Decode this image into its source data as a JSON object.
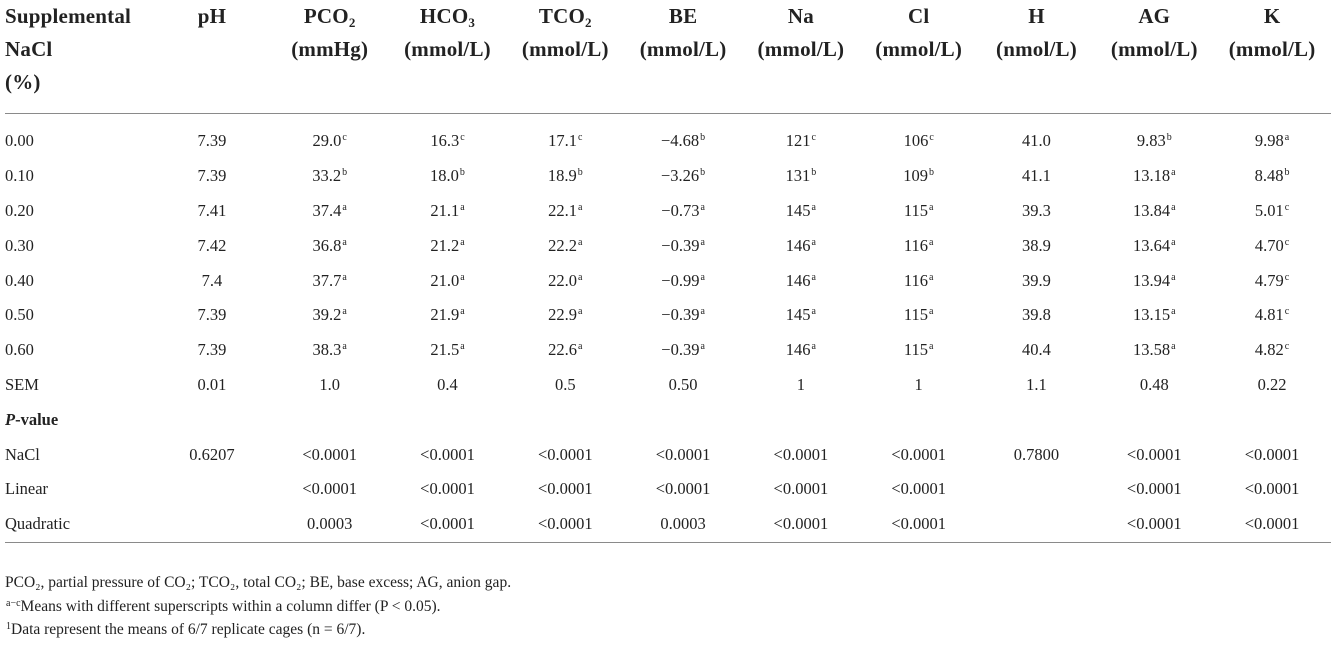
{
  "header": {
    "stub": [
      "Supplemental",
      "NaCl",
      "(%)"
    ],
    "columns": [
      {
        "name": "pH",
        "unit": ""
      },
      {
        "name": "PCO",
        "sub": "2",
        "unit": "(mmHg)"
      },
      {
        "name": "HCO",
        "sub": "3",
        "unit": "(mmol/L)"
      },
      {
        "name": "TCO",
        "sub": "2",
        "unit": "(mmol/L)"
      },
      {
        "name": "BE",
        "unit": "(mmol/L)"
      },
      {
        "name": "Na",
        "unit": "(mmol/L)"
      },
      {
        "name": "Cl",
        "unit": "(mmol/L)"
      },
      {
        "name": "H",
        "unit": "(nmol/L)"
      },
      {
        "name": "AG",
        "unit": "(mmol/L)"
      },
      {
        "name": "K",
        "unit": "(mmol/L)"
      }
    ]
  },
  "rows": [
    {
      "label": "0.00",
      "cells": [
        [
          "7.39",
          ""
        ],
        [
          "29.0",
          "c"
        ],
        [
          "16.3",
          "c"
        ],
        [
          "17.1",
          "c"
        ],
        [
          "−4.68",
          "b"
        ],
        [
          "121",
          "c"
        ],
        [
          "106",
          "c"
        ],
        [
          "41.0",
          ""
        ],
        [
          "9.83",
          "b"
        ],
        [
          "9.98",
          "a"
        ]
      ]
    },
    {
      "label": "0.10",
      "cells": [
        [
          "7.39",
          ""
        ],
        [
          "33.2",
          "b"
        ],
        [
          "18.0",
          "b"
        ],
        [
          "18.9",
          "b"
        ],
        [
          "−3.26",
          "b"
        ],
        [
          "131",
          "b"
        ],
        [
          "109",
          "b"
        ],
        [
          "41.1",
          ""
        ],
        [
          "13.18",
          "a"
        ],
        [
          "8.48",
          "b"
        ]
      ]
    },
    {
      "label": "0.20",
      "cells": [
        [
          "7.41",
          ""
        ],
        [
          "37.4",
          "a"
        ],
        [
          "21.1",
          "a"
        ],
        [
          "22.1",
          "a"
        ],
        [
          "−0.73",
          "a"
        ],
        [
          "145",
          "a"
        ],
        [
          "115",
          "a"
        ],
        [
          "39.3",
          ""
        ],
        [
          "13.84",
          "a"
        ],
        [
          "5.01",
          "c"
        ]
      ]
    },
    {
      "label": "0.30",
      "cells": [
        [
          "7.42",
          ""
        ],
        [
          "36.8",
          "a"
        ],
        [
          "21.2",
          "a"
        ],
        [
          "22.2",
          "a"
        ],
        [
          "−0.39",
          "a"
        ],
        [
          "146",
          "a"
        ],
        [
          "116",
          "a"
        ],
        [
          "38.9",
          ""
        ],
        [
          "13.64",
          "a"
        ],
        [
          "4.70",
          "c"
        ]
      ]
    },
    {
      "label": "0.40",
      "cells": [
        [
          "7.4",
          ""
        ],
        [
          "37.7",
          "a"
        ],
        [
          "21.0",
          "a"
        ],
        [
          "22.0",
          "a"
        ],
        [
          "−0.99",
          "a"
        ],
        [
          "146",
          "a"
        ],
        [
          "116",
          "a"
        ],
        [
          "39.9",
          ""
        ],
        [
          "13.94",
          "a"
        ],
        [
          "4.79",
          "c"
        ]
      ]
    },
    {
      "label": "0.50",
      "cells": [
        [
          "7.39",
          ""
        ],
        [
          "39.2",
          "a"
        ],
        [
          "21.9",
          "a"
        ],
        [
          "22.9",
          "a"
        ],
        [
          "−0.39",
          "a"
        ],
        [
          "145",
          "a"
        ],
        [
          "115",
          "a"
        ],
        [
          "39.8",
          ""
        ],
        [
          "13.15",
          "a"
        ],
        [
          "4.81",
          "c"
        ]
      ]
    },
    {
      "label": "0.60",
      "cells": [
        [
          "7.39",
          ""
        ],
        [
          "38.3",
          "a"
        ],
        [
          "21.5",
          "a"
        ],
        [
          "22.6",
          "a"
        ],
        [
          "−0.39",
          "a"
        ],
        [
          "146",
          "a"
        ],
        [
          "115",
          "a"
        ],
        [
          "40.4",
          ""
        ],
        [
          "13.58",
          "a"
        ],
        [
          "4.82",
          "c"
        ]
      ]
    },
    {
      "label": "SEM",
      "cells": [
        [
          "0.01",
          ""
        ],
        [
          "1.0",
          ""
        ],
        [
          "0.4",
          ""
        ],
        [
          "0.5",
          ""
        ],
        [
          "0.50",
          ""
        ],
        [
          "1",
          ""
        ],
        [
          "1",
          ""
        ],
        [
          "1.1",
          ""
        ],
        [
          "0.48",
          ""
        ],
        [
          "0.22",
          ""
        ]
      ]
    }
  ],
  "pvalue_section": {
    "title_italic": "P",
    "title_rest": "-value"
  },
  "pvalue_rows": [
    {
      "label": "NaCl",
      "cells": [
        "0.6207",
        "<0.0001",
        "<0.0001",
        "<0.0001",
        "<0.0001",
        "<0.0001",
        "<0.0001",
        "0.7800",
        "<0.0001",
        "<0.0001"
      ]
    },
    {
      "label": "Linear",
      "cells": [
        "",
        "<0.0001",
        "<0.0001",
        "<0.0001",
        "<0.0001",
        "<0.0001",
        "<0.0001",
        "",
        "<0.0001",
        "<0.0001"
      ]
    },
    {
      "label": "Quadratic",
      "cells": [
        "",
        "0.0003",
        "<0.0001",
        "<0.0001",
        "0.0003",
        "<0.0001",
        "<0.0001",
        "",
        "<0.0001",
        "<0.0001"
      ]
    }
  ],
  "footnotes": {
    "line1": "PCO₂, partial pressure of CO₂; TCO₂, total CO₂; BE, base excess; AG, anion gap.",
    "line2_sup": "a−c",
    "line2": "Means with different superscripts within a column differ (P < 0.05).",
    "line3_sup": "1",
    "line3": "Data represent the means of 6/7 replicate cages (n = 6/7)."
  }
}
